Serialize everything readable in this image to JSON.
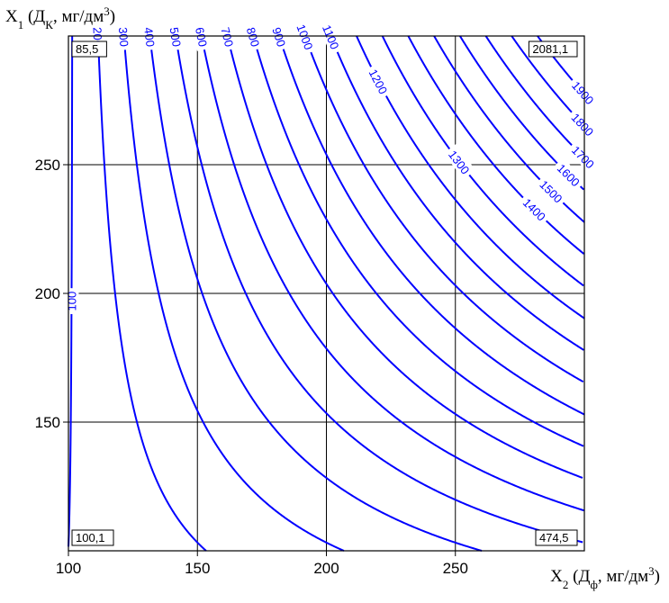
{
  "chart_data": {
    "type": "contour",
    "xlabel": {
      "main": "X",
      "sub": "2",
      "rest": " (Д",
      "sub2": "ф",
      "rest2": ", мг/дм",
      "sup": "3",
      "close": ")"
    },
    "ylabel": {
      "main": "X",
      "sub": "1",
      "rest": " (Д",
      "sub2": "К",
      "rest2": ", мг/дм",
      "sup": "3",
      "close": ")"
    },
    "xlim": [
      100,
      300
    ],
    "ylim": [
      100,
      300
    ],
    "xticks": [
      100,
      150,
      200,
      250
    ],
    "yticks": [
      150,
      200,
      250
    ],
    "grid": true,
    "levels": [
      100,
      200,
      300,
      400,
      500,
      600,
      700,
      800,
      900,
      1000,
      1100,
      1200,
      1300,
      1400,
      1500,
      1600,
      1700,
      1800,
      1900
    ],
    "level_labels": [
      "100",
      "200",
      "300",
      "400",
      "500",
      "600",
      "700",
      "800",
      "900",
      "1000",
      "1100",
      "1200",
      "1300",
      "1400",
      "1500",
      "1600",
      "1700",
      "1800",
      "1900"
    ],
    "corner_values": [
      {
        "x": 100,
        "y": 300,
        "value": "85,5"
      },
      {
        "x": 300,
        "y": 300,
        "value": "2081,1"
      },
      {
        "x": 100,
        "y": 100,
        "value": "100,1"
      },
      {
        "x": 300,
        "y": 100,
        "value": "474,5"
      }
    ],
    "line_color": "#0000ff"
  }
}
